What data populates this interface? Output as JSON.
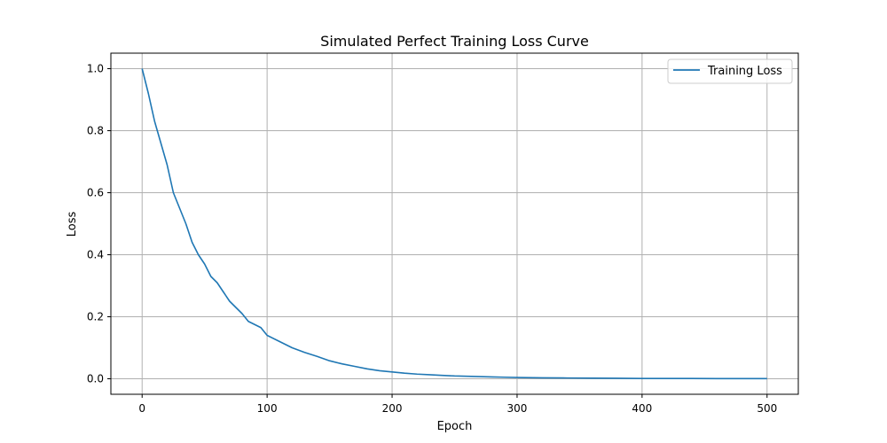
{
  "chart_data": {
    "type": "line",
    "title": "Simulated Perfect Training Loss Curve",
    "xlabel": "Epoch",
    "ylabel": "Loss",
    "xlim": [
      -25,
      525
    ],
    "ylim": [
      -0.05,
      1.05
    ],
    "xticks": [
      0,
      100,
      200,
      300,
      400,
      500
    ],
    "yticks": [
      0.0,
      0.2,
      0.4,
      0.6,
      0.8,
      1.0
    ],
    "xtick_labels": [
      "0",
      "100",
      "200",
      "300",
      "400",
      "500"
    ],
    "ytick_labels": [
      "0.0",
      "0.2",
      "0.4",
      "0.6",
      "0.8",
      "1.0"
    ],
    "grid": true,
    "legend": "top-right",
    "series": [
      {
        "name": "Training Loss",
        "color": "#1f77b4",
        "x": [
          0,
          5,
          10,
          15,
          20,
          25,
          30,
          35,
          40,
          45,
          50,
          55,
          60,
          65,
          70,
          75,
          80,
          85,
          90,
          95,
          100,
          110,
          120,
          130,
          140,
          150,
          160,
          170,
          180,
          190,
          200,
          210,
          220,
          230,
          240,
          250,
          260,
          270,
          280,
          290,
          300,
          320,
          340,
          360,
          380,
          400,
          420,
          440,
          460,
          480,
          500
        ],
        "y": [
          1.0,
          0.92,
          0.83,
          0.76,
          0.69,
          0.6,
          0.55,
          0.5,
          0.44,
          0.4,
          0.37,
          0.33,
          0.31,
          0.28,
          0.25,
          0.23,
          0.21,
          0.185,
          0.175,
          0.165,
          0.14,
          0.12,
          0.1,
          0.085,
          0.072,
          0.058,
          0.048,
          0.04,
          0.032,
          0.026,
          0.022,
          0.018,
          0.015,
          0.013,
          0.011,
          0.009,
          0.008,
          0.007,
          0.006,
          0.005,
          0.004,
          0.003,
          0.0025,
          0.002,
          0.0015,
          0.001,
          0.001,
          0.0008,
          0.0006,
          0.0005,
          0.0004
        ]
      }
    ]
  }
}
